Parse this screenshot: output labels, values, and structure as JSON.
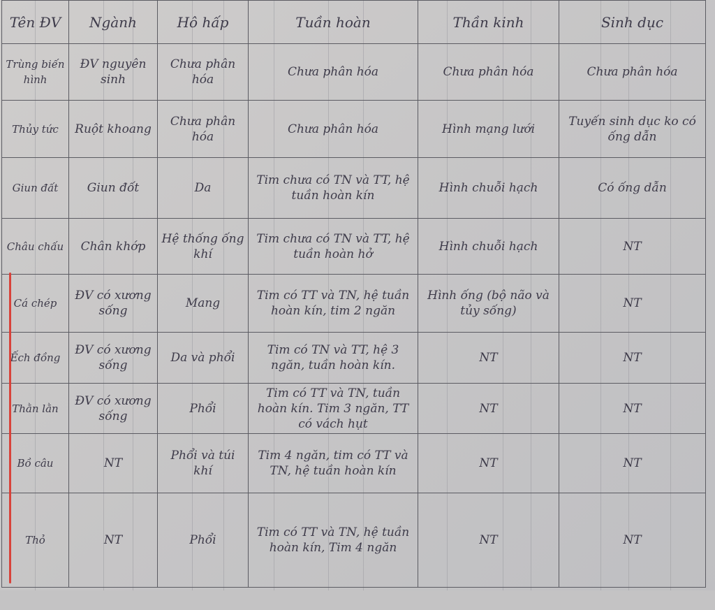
{
  "headers": [
    "Tên ĐV",
    "Ngành",
    "Hô hấp",
    "Tuần hoàn",
    "Thần kinh",
    "Sinh dục"
  ],
  "rows": [
    [
      "Trùng biến hình",
      "ĐV nguyên sinh",
      "Chưa phân hóa",
      "Chưa phân hóa",
      "Chưa phân hóa",
      "Chưa phân hóa"
    ],
    [
      "Thủy tức",
      "Ruột khoang",
      "Chưa phân hóa",
      "Chưa phân hóa",
      "Hình mạng lưới",
      "Tuyến sinh dục ko có ống dẫn"
    ],
    [
      "Giun đất",
      "Giun đốt",
      "Da",
      "Tim chưa có TN và TT, hệ tuần hoàn kín",
      "Hình chuỗi hạch",
      "Có ống dẫn"
    ],
    [
      "Châu chấu",
      "Chân khớp",
      "Hệ thống ống khí",
      "Tim chưa có TN và TT, hệ tuần hoàn hở",
      "Hình chuỗi hạch",
      "NT"
    ],
    [
      "Cá chép",
      "ĐV có xương sống",
      "Mang",
      "Tim có TT và TN, hệ tuần hoàn kín, tim 2 ngăn",
      "Hình ống (bộ não và tủy sống)",
      "NT"
    ],
    [
      "Ếch đồng",
      "ĐV có xương sống",
      "Da và phổi",
      "Tim có TN và TT, hệ 3 ngăn, tuần hoàn kín.",
      "NT",
      "NT"
    ],
    [
      "Thằn lằn",
      "ĐV có xương sống",
      "Phổi",
      "Tim có TT và TN, tuần hoàn kín. Tim 3 ngăn, TT có vách hụt",
      "NT",
      "NT"
    ],
    [
      "Bồ câu",
      "NT",
      "Phổi và túi khí",
      "Tim 4 ngăn, tim có TT và TN, hệ tuần hoàn kín",
      "NT",
      "NT"
    ],
    [
      "Thỏ",
      "NT",
      "Phổi",
      "Tim có TT và TN, hệ tuần hoàn kín, Tim 4 ngăn",
      "NT",
      "NT"
    ]
  ],
  "colors": {
    "ink": "#3e3b4a",
    "margin_line": "#d8423a",
    "paper": "#c8c7c6"
  }
}
